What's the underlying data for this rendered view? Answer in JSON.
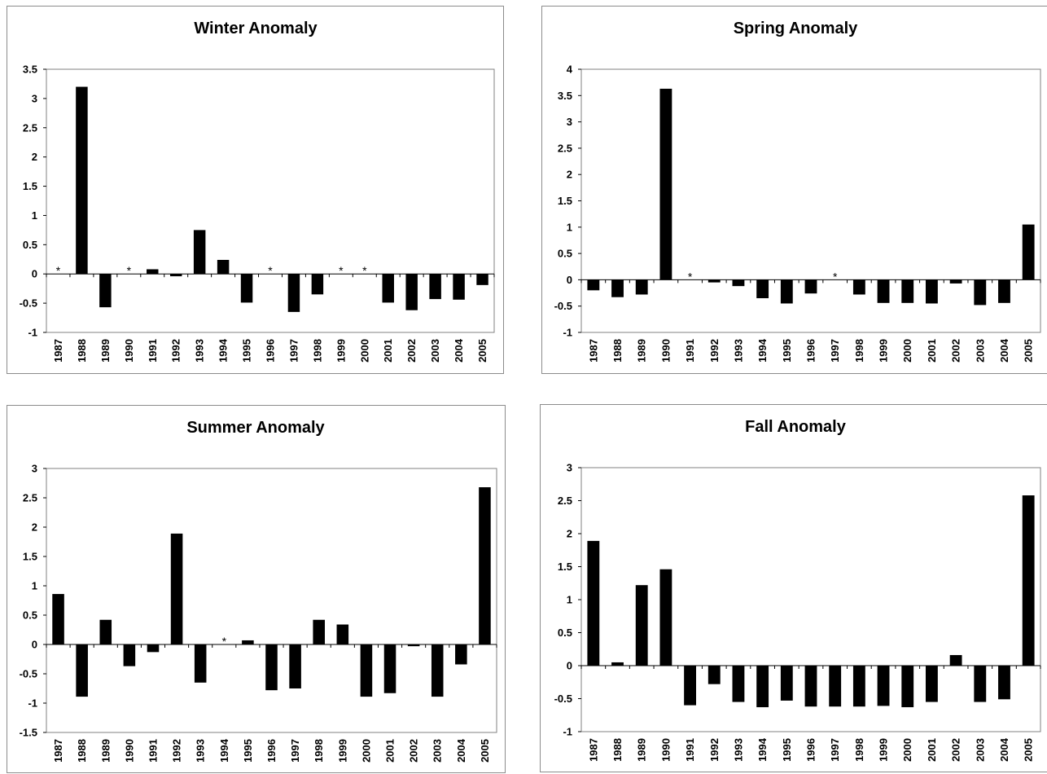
{
  "chart_data": [
    {
      "type": "bar",
      "title": "Winter Anomaly",
      "categories": [
        "1987",
        "1988",
        "1989",
        "1990",
        "1991",
        "1992",
        "1993",
        "1994",
        "1995",
        "1996",
        "1997",
        "1998",
        "1999",
        "2000",
        "2001",
        "2002",
        "2003",
        "2004",
        "2005"
      ],
      "values": [
        null,
        3.2,
        -0.57,
        null,
        0.08,
        -0.04,
        0.75,
        0.24,
        -0.49,
        null,
        -0.65,
        -0.35,
        null,
        null,
        -0.49,
        -0.62,
        -0.43,
        -0.44,
        -0.19
      ],
      "missing_marker": "*",
      "ylim": [
        -1,
        3.5
      ],
      "yticks": [
        "-1",
        "-0.5",
        "0",
        "0.5",
        "1",
        "1.5",
        "2",
        "2.5",
        "3",
        "3.5"
      ],
      "bar_color": "#000000",
      "grid": false,
      "legend": false
    },
    {
      "type": "bar",
      "title": "Spring Anomaly",
      "categories": [
        "1987",
        "1988",
        "1989",
        "1990",
        "1991",
        "1992",
        "1993",
        "1994",
        "1995",
        "1996",
        "1997",
        "1998",
        "1999",
        "2000",
        "2001",
        "2002",
        "2003",
        "2004",
        "2005"
      ],
      "values": [
        -0.2,
        -0.33,
        -0.28,
        3.63,
        null,
        -0.05,
        -0.12,
        -0.35,
        -0.45,
        -0.26,
        null,
        -0.28,
        -0.44,
        -0.44,
        -0.45,
        -0.07,
        -0.48,
        -0.44,
        1.05
      ],
      "missing_marker": "*",
      "ylim": [
        -1,
        4
      ],
      "yticks": [
        "-1",
        "-0.5",
        "0",
        "0.5",
        "1",
        "1.5",
        "2",
        "2.5",
        "3",
        "3.5",
        "4"
      ],
      "bar_color": "#000000",
      "grid": false,
      "legend": false
    },
    {
      "type": "bar",
      "title": "Summer Anomaly",
      "categories": [
        "1987",
        "1988",
        "1989",
        "1990",
        "1991",
        "1992",
        "1993",
        "1994",
        "1995",
        "1996",
        "1997",
        "1998",
        "1999",
        "2000",
        "2001",
        "2002",
        "2003",
        "2004",
        "2005"
      ],
      "values": [
        0.86,
        -0.89,
        0.42,
        -0.37,
        -0.13,
        1.89,
        -0.65,
        null,
        0.07,
        -0.78,
        -0.75,
        0.42,
        0.34,
        -0.89,
        -0.83,
        -0.03,
        -0.89,
        -0.34,
        2.68
      ],
      "missing_marker": "*",
      "ylim": [
        -1.5,
        3
      ],
      "yticks": [
        "-1.5",
        "-1",
        "-0.5",
        "0",
        "0.5",
        "1",
        "1.5",
        "2",
        "2.5",
        "3"
      ],
      "bar_color": "#000000",
      "grid": false,
      "legend": false
    },
    {
      "type": "bar",
      "title": "Fall Anomaly",
      "categories": [
        "1987",
        "1988",
        "1989",
        "1990",
        "1991",
        "1992",
        "1993",
        "1994",
        "1995",
        "1996",
        "1997",
        "1998",
        "1999",
        "2000",
        "2001",
        "2002",
        "2003",
        "2004",
        "2005"
      ],
      "values": [
        1.89,
        0.05,
        1.22,
        1.46,
        -0.6,
        -0.28,
        -0.55,
        -0.63,
        -0.53,
        -0.62,
        -0.62,
        -0.62,
        -0.61,
        -0.63,
        -0.55,
        0.16,
        -0.55,
        -0.51,
        2.58
      ],
      "missing_marker": "*",
      "ylim": [
        -1,
        3
      ],
      "yticks": [
        "-1",
        "-0.5",
        "0",
        "0.5",
        "1",
        "1.5",
        "2",
        "2.5",
        "3"
      ],
      "bar_color": "#000000",
      "grid": false,
      "legend": false
    }
  ]
}
